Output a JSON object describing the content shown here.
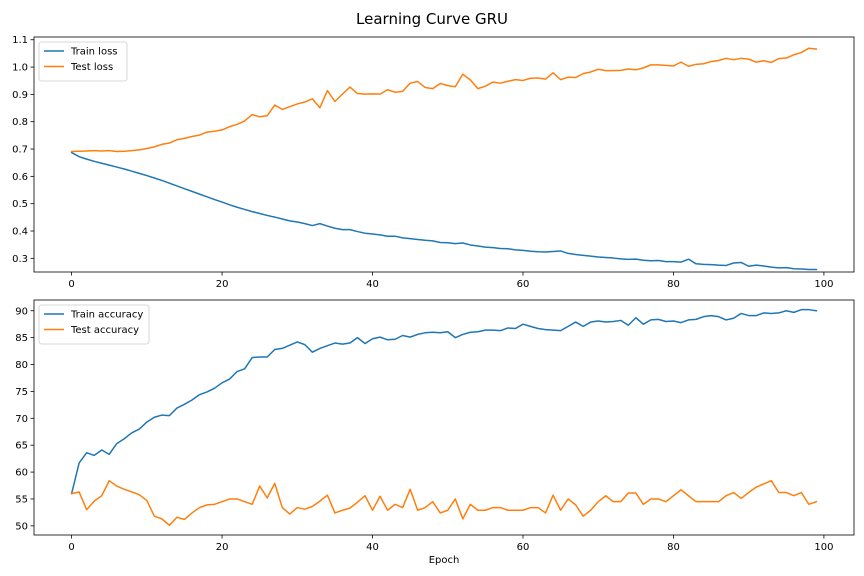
{
  "figure": {
    "title": "Learning Curve GRU"
  },
  "chart_data": [
    {
      "type": "line",
      "title": "",
      "xlabel": "",
      "ylabel": "",
      "xlim": [
        -5,
        104
      ],
      "ylim": [
        0.25,
        1.11
      ],
      "xticks": [
        0,
        20,
        40,
        60,
        80,
        100
      ],
      "yticks": [
        0.3,
        0.4,
        0.5,
        0.6,
        0.7,
        0.8,
        0.9,
        1.0,
        1.1
      ],
      "ytick_labels": [
        "0.3",
        "0.4",
        "0.5",
        "0.6",
        "0.7",
        "0.8",
        "0.9",
        "1.0",
        "1.1"
      ],
      "grid": false,
      "legend_position": "top-left",
      "x": [
        0,
        1,
        2,
        3,
        4,
        5,
        6,
        7,
        8,
        9,
        10,
        11,
        12,
        13,
        14,
        15,
        16,
        17,
        18,
        19,
        20,
        21,
        22,
        23,
        24,
        25,
        26,
        27,
        28,
        29,
        30,
        31,
        32,
        33,
        34,
        35,
        36,
        37,
        38,
        39,
        40,
        41,
        42,
        43,
        44,
        45,
        46,
        47,
        48,
        49,
        50,
        51,
        52,
        53,
        54,
        55,
        56,
        57,
        58,
        59,
        60,
        61,
        62,
        63,
        64,
        65,
        66,
        67,
        68,
        69,
        70,
        71,
        72,
        73,
        74,
        75,
        76,
        77,
        78,
        79,
        80,
        81,
        82,
        83,
        84,
        85,
        86,
        87,
        88,
        89,
        90,
        91,
        92,
        93,
        94,
        95,
        96,
        97,
        98,
        99
      ],
      "series": [
        {
          "name": "Train loss",
          "color": "#1f77b4",
          "values": [
            0.687,
            0.672,
            0.663,
            0.655,
            0.648,
            0.641,
            0.634,
            0.627,
            0.619,
            0.611,
            0.603,
            0.594,
            0.585,
            0.575,
            0.565,
            0.555,
            0.545,
            0.535,
            0.525,
            0.515,
            0.506,
            0.496,
            0.487,
            0.479,
            0.471,
            0.464,
            0.457,
            0.451,
            0.444,
            0.437,
            0.433,
            0.427,
            0.42,
            0.427,
            0.418,
            0.41,
            0.405,
            0.405,
            0.398,
            0.392,
            0.389,
            0.386,
            0.381,
            0.381,
            0.375,
            0.372,
            0.369,
            0.366,
            0.364,
            0.358,
            0.357,
            0.354,
            0.356,
            0.349,
            0.345,
            0.341,
            0.339,
            0.336,
            0.335,
            0.331,
            0.329,
            0.326,
            0.324,
            0.323,
            0.325,
            0.327,
            0.318,
            0.314,
            0.311,
            0.308,
            0.305,
            0.303,
            0.301,
            0.298,
            0.296,
            0.297,
            0.293,
            0.291,
            0.292,
            0.288,
            0.288,
            0.286,
            0.297,
            0.28,
            0.278,
            0.277,
            0.275,
            0.274,
            0.283,
            0.285,
            0.271,
            0.275,
            0.272,
            0.268,
            0.265,
            0.266,
            0.262,
            0.261,
            0.259,
            0.259
          ]
        },
        {
          "name": "Test loss",
          "color": "#ff7f0e",
          "values": [
            0.691,
            0.692,
            0.693,
            0.694,
            0.693,
            0.694,
            0.691,
            0.692,
            0.694,
            0.697,
            0.702,
            0.708,
            0.717,
            0.722,
            0.734,
            0.739,
            0.746,
            0.751,
            0.762,
            0.765,
            0.77,
            0.782,
            0.79,
            0.803,
            0.826,
            0.818,
            0.822,
            0.861,
            0.845,
            0.855,
            0.865,
            0.872,
            0.884,
            0.851,
            0.914,
            0.874,
            0.901,
            0.927,
            0.903,
            0.901,
            0.902,
            0.901,
            0.917,
            0.908,
            0.911,
            0.941,
            0.947,
            0.925,
            0.921,
            0.94,
            0.932,
            0.928,
            0.974,
            0.953,
            0.921,
            0.93,
            0.945,
            0.941,
            0.948,
            0.954,
            0.951,
            0.959,
            0.96,
            0.956,
            0.979,
            0.954,
            0.963,
            0.962,
            0.976,
            0.982,
            0.992,
            0.987,
            0.987,
            0.988,
            0.993,
            0.99,
            0.997,
            1.008,
            1.008,
            1.006,
            1.004,
            1.018,
            1.003,
            1.01,
            1.012,
            1.02,
            1.024,
            1.032,
            1.027,
            1.032,
            1.029,
            1.018,
            1.023,
            1.017,
            1.031,
            1.033,
            1.045,
            1.053,
            1.069,
            1.066
          ]
        }
      ]
    },
    {
      "type": "line",
      "title": "",
      "xlabel": "Epoch",
      "ylabel": "",
      "xlim": [
        -5,
        104
      ],
      "ylim": [
        48.3,
        92.0
      ],
      "xticks": [
        0,
        20,
        40,
        60,
        80,
        100
      ],
      "yticks": [
        50,
        55,
        60,
        65,
        70,
        75,
        80,
        85,
        90
      ],
      "ytick_labels": [
        "50",
        "55",
        "60",
        "65",
        "70",
        "75",
        "80",
        "85",
        "90"
      ],
      "grid": false,
      "legend_position": "top-left",
      "x": [
        0,
        1,
        2,
        3,
        4,
        5,
        6,
        7,
        8,
        9,
        10,
        11,
        12,
        13,
        14,
        15,
        16,
        17,
        18,
        19,
        20,
        21,
        22,
        23,
        24,
        25,
        26,
        27,
        28,
        29,
        30,
        31,
        32,
        33,
        34,
        35,
        36,
        37,
        38,
        39,
        40,
        41,
        42,
        43,
        44,
        45,
        46,
        47,
        48,
        49,
        50,
        51,
        52,
        53,
        54,
        55,
        56,
        57,
        58,
        59,
        60,
        61,
        62,
        63,
        64,
        65,
        66,
        67,
        68,
        69,
        70,
        71,
        72,
        73,
        74,
        75,
        76,
        77,
        78,
        79,
        80,
        81,
        82,
        83,
        84,
        85,
        86,
        87,
        88,
        89,
        90,
        91,
        92,
        93,
        94,
        95,
        96,
        97,
        98,
        99
      ],
      "series": [
        {
          "name": "Train accuracy",
          "color": "#1f77b4",
          "values": [
            56.0,
            61.7,
            63.6,
            63.1,
            64.1,
            63.3,
            65.3,
            66.2,
            67.3,
            68.0,
            69.3,
            70.2,
            70.6,
            70.5,
            71.9,
            72.6,
            73.4,
            74.4,
            74.9,
            75.6,
            76.6,
            77.3,
            78.7,
            79.2,
            81.3,
            81.4,
            81.4,
            82.8,
            83.0,
            83.6,
            84.2,
            83.7,
            82.3,
            83.0,
            83.5,
            84.0,
            83.8,
            84.0,
            85.0,
            83.9,
            84.8,
            85.1,
            84.6,
            84.7,
            85.4,
            85.1,
            85.6,
            85.9,
            86.0,
            85.9,
            86.1,
            85.0,
            85.6,
            86.0,
            86.1,
            86.4,
            86.4,
            86.3,
            86.8,
            86.7,
            87.5,
            87.1,
            86.7,
            86.5,
            86.4,
            86.3,
            87.1,
            87.9,
            87.1,
            87.9,
            88.1,
            87.9,
            88.0,
            88.2,
            87.3,
            88.7,
            87.5,
            88.3,
            88.4,
            88.0,
            88.1,
            87.8,
            88.3,
            88.4,
            88.9,
            89.1,
            88.9,
            88.3,
            88.6,
            89.5,
            89.1,
            89.1,
            89.6,
            89.5,
            89.6,
            90.0,
            89.7,
            90.2,
            90.2,
            90.0
          ]
        },
        {
          "name": "Test accuracy",
          "color": "#ff7f0e",
          "values": [
            56.0,
            56.3,
            53.0,
            54.6,
            55.6,
            58.4,
            57.4,
            56.8,
            56.3,
            55.8,
            54.7,
            51.8,
            51.3,
            50.1,
            51.6,
            51.2,
            52.4,
            53.4,
            53.9,
            54.0,
            54.5,
            55.0,
            55.0,
            54.5,
            54.0,
            57.4,
            55.2,
            57.9,
            53.4,
            52.2,
            53.4,
            53.1,
            53.6,
            54.6,
            55.7,
            52.4,
            52.9,
            53.3,
            54.4,
            55.6,
            52.9,
            55.5,
            52.9,
            54.0,
            53.4,
            56.8,
            52.9,
            53.4,
            54.5,
            52.4,
            52.9,
            55.0,
            51.3,
            54.0,
            52.9,
            52.9,
            53.4,
            53.4,
            52.9,
            52.9,
            52.9,
            53.4,
            53.4,
            52.4,
            55.7,
            52.9,
            55.0,
            53.9,
            51.8,
            52.9,
            54.5,
            55.6,
            54.5,
            54.5,
            56.1,
            56.1,
            54.0,
            55.0,
            55.0,
            54.5,
            55.6,
            56.7,
            55.6,
            54.5,
            54.5,
            54.5,
            54.5,
            55.6,
            56.2,
            55.1,
            56.2,
            57.2,
            57.8,
            58.4,
            56.2,
            56.2,
            55.6,
            56.2,
            54.0,
            54.5
          ]
        }
      ]
    }
  ]
}
